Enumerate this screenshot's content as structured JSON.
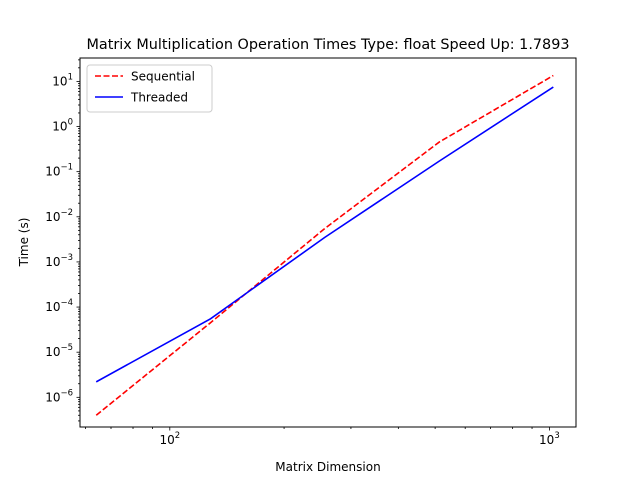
{
  "chart_data": {
    "type": "line",
    "title": "Matrix Multiplication Operation Times Type: float Speed Up: 1.7893",
    "xlabel": "Matrix Dimension",
    "ylabel": "Time (s)",
    "x_scale": "log",
    "y_scale": "log",
    "xlim": [
      58,
      1175
    ],
    "ylim": [
      2.2e-07,
      33
    ],
    "x_ticks": [
      {
        "value": 100,
        "base": "10",
        "exp": "2"
      },
      {
        "value": 1000,
        "base": "10",
        "exp": "3"
      }
    ],
    "y_ticks": [
      {
        "value": 1e-06,
        "base": "10",
        "exp": "−6"
      },
      {
        "value": 1e-05,
        "base": "10",
        "exp": "−5"
      },
      {
        "value": 0.0001,
        "base": "10",
        "exp": "−4"
      },
      {
        "value": 0.001,
        "base": "10",
        "exp": "−3"
      },
      {
        "value": 0.01,
        "base": "10",
        "exp": "−2"
      },
      {
        "value": 0.1,
        "base": "10",
        "exp": "−1"
      },
      {
        "value": 1,
        "base": "10",
        "exp": "0"
      },
      {
        "value": 10,
        "base": "10",
        "exp": "1"
      }
    ],
    "legend_position": "top-left",
    "grid": false,
    "series": [
      {
        "name": "Sequential",
        "color": "#ff0000",
        "style": "dashed",
        "x": [
          64,
          128,
          256,
          512,
          1024
        ],
        "y": [
          4e-07,
          4.5e-05,
          0.0055,
          0.45,
          13.5
        ]
      },
      {
        "name": "Threaded",
        "color": "#0000ff",
        "style": "solid",
        "x": [
          64,
          128,
          256,
          512,
          1024
        ],
        "y": [
          2.2e-06,
          5.5e-05,
          0.0035,
          0.17,
          7.5
        ]
      }
    ]
  }
}
